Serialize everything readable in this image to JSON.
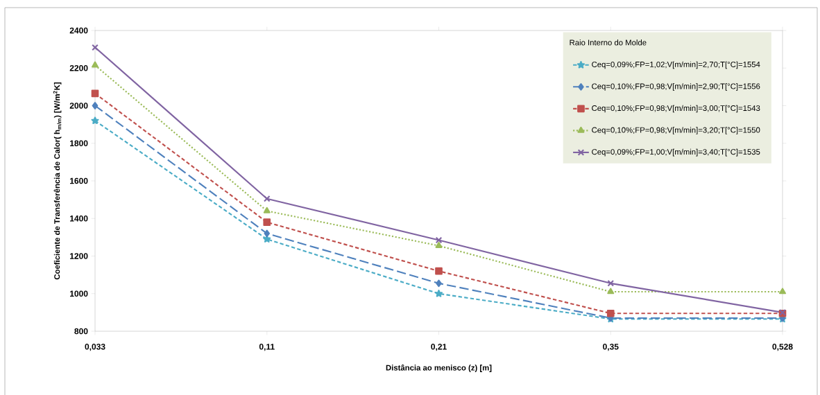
{
  "chart_data": {
    "type": "line",
    "xlabel": "Distância ao menisco (z) [m]",
    "ylabel": "Coeficiente de Transferência de Calor( h$_{m/m}$) [W/m$^{2}$K]",
    "legend_title": "Raio Interno  do Molde",
    "categories": [
      "0,033",
      "0,11",
      "0,21",
      "0,35",
      "0,528"
    ],
    "ylim": [
      800,
      2400
    ],
    "yticks": [
      800,
      1000,
      1200,
      1400,
      1600,
      1800,
      2000,
      2200,
      2400
    ],
    "legend": "top right",
    "grid": false,
    "series": [
      {
        "name": "Ceq=0,09%;FP=1,02;V[m/min]=2,70;T[°C]=1554",
        "color": "#4bacc6",
        "marker": "star",
        "line_style": "dashed",
        "values": [
          1920,
          1290,
          1000,
          865,
          865
        ]
      },
      {
        "name": "Ceq=0,10%;FP=0,98;V[m/min]=2,90;T[°C]=1556",
        "color": "#4f81bd",
        "marker": "diamond",
        "line_style": "longdashed",
        "values": [
          2000,
          1320,
          1055,
          870,
          870
        ]
      },
      {
        "name": "Ceq=0,10%;FP=0,98;V[m/min]=3,00;T[°C]=1543",
        "color": "#c0504d",
        "marker": "square",
        "line_style": "dashed",
        "values": [
          2065,
          1380,
          1120,
          895,
          895
        ]
      },
      {
        "name": "Ceq=0,10%;FP=0,98;V[m/min]=3,20;T[°C]=1550",
        "color": "#9bbb59",
        "marker": "triangle",
        "line_style": "dotted",
        "values": [
          2215,
          1440,
          1255,
          1010,
          1010
        ]
      },
      {
        "name": "Ceq=0,09%;FP=1,00;V[m/min]=3,40;T[°C]=1535",
        "color": "#8064a2",
        "marker": "cross",
        "line_style": "solid",
        "values": [
          2310,
          1505,
          1285,
          1055,
          900
        ]
      }
    ]
  }
}
